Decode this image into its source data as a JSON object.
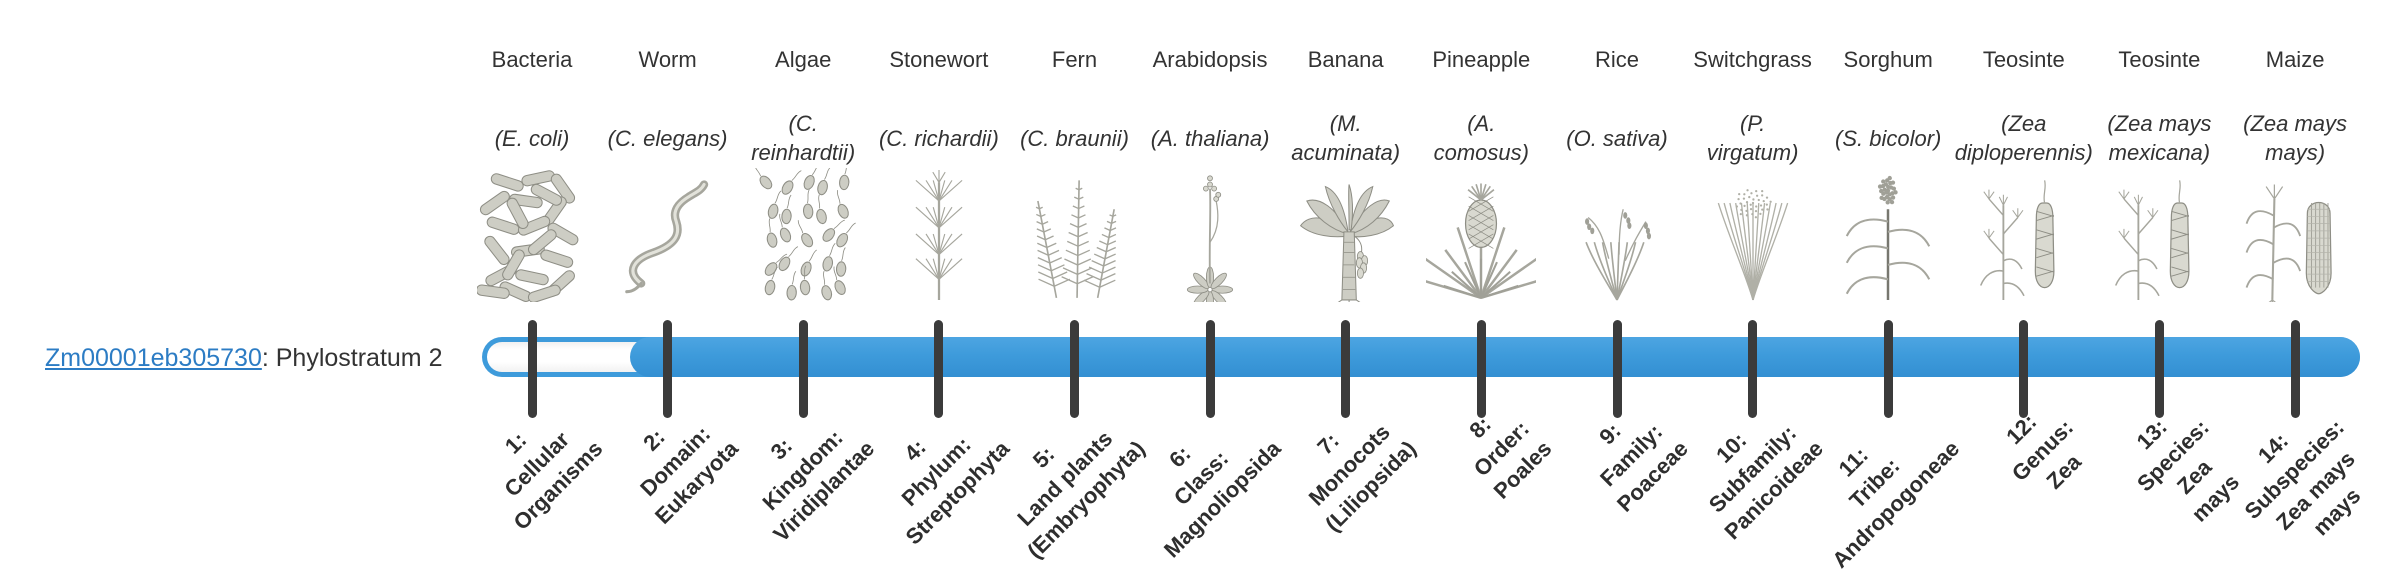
{
  "gene": {
    "id": "Zm00001eb305730",
    "suffix": ": Phylostratum 2",
    "phylostratum": 2
  },
  "bar": {
    "total_strata": 14,
    "filled_from_stratum": 2,
    "fill_color": "#3e9bdb",
    "track_color": "#ffffff",
    "tick_color": "#3b3b3b",
    "link_color": "#2c7cc4"
  },
  "organisms": [
    {
      "name": "Bacteria",
      "sci": "(E. coli)",
      "icon": "bacteria"
    },
    {
      "name": "Worm",
      "sci": "(C. elegans)",
      "icon": "worm"
    },
    {
      "name": "Algae",
      "sci": "(C.\nreinhardtii)",
      "icon": "algae"
    },
    {
      "name": "Stonewort",
      "sci": "(C. richardii)",
      "icon": "stonewort"
    },
    {
      "name": "Fern",
      "sci": "(C. braunii)",
      "icon": "fern"
    },
    {
      "name": "Arabidopsis",
      "sci": "(A. thaliana)",
      "icon": "arabidopsis"
    },
    {
      "name": "Banana",
      "sci": "(M.\nacuminata)",
      "icon": "banana"
    },
    {
      "name": "Pineapple",
      "sci": "(A.\ncomosus)",
      "icon": "pineapple"
    },
    {
      "name": "Rice",
      "sci": "(O. sativa)",
      "icon": "rice"
    },
    {
      "name": "Switchgrass",
      "sci": "(P.\nvirgatum)",
      "icon": "switchgrass"
    },
    {
      "name": "Sorghum",
      "sci": "(S. bicolor)",
      "icon": "sorghum"
    },
    {
      "name": "Teosinte",
      "sci": "(Zea\ndiploperennis)",
      "icon": "teosinte"
    },
    {
      "name": "Teosinte",
      "sci": "(Zea mays\nmexicana)",
      "icon": "teosinte"
    },
    {
      "name": "Maize",
      "sci": "(Zea mays\nmays)",
      "icon": "maize"
    }
  ],
  "phylostrata": [
    {
      "num": 1,
      "label": "1:\nCellular\nOrganisms"
    },
    {
      "num": 2,
      "label": "2:\nDomain:\nEukaryota"
    },
    {
      "num": 3,
      "label": "3:\nKingdom:\nViridiplantae"
    },
    {
      "num": 4,
      "label": "4:\nPhylum:\nStreptophyta"
    },
    {
      "num": 5,
      "label": "5:\nLand plants\n(Embryophyta)"
    },
    {
      "num": 6,
      "label": "6:\nClass:\nMagnoliopsida"
    },
    {
      "num": 7,
      "label": "7:\nMonocots\n(Liliopsida)"
    },
    {
      "num": 8,
      "label": "8:\nOrder:\nPoales"
    },
    {
      "num": 9,
      "label": "9:\nFamily:\nPoaceae"
    },
    {
      "num": 10,
      "label": "10:\nSubfamily:\nPanicoideae"
    },
    {
      "num": 11,
      "label": "11:\nTribe:\nAndropogoneae"
    },
    {
      "num": 12,
      "label": "12:\nGenus:\nZea"
    },
    {
      "num": 13,
      "label": "13:\nSpecies:\nZea\nmays"
    },
    {
      "num": 14,
      "label": "14:\nSubspecies:\nZea mays\nmays"
    }
  ]
}
